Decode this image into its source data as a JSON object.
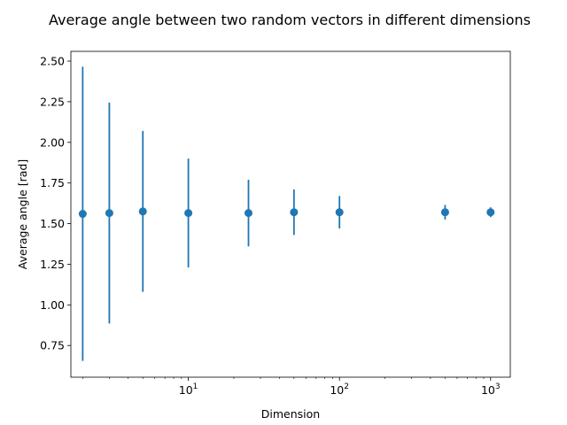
{
  "chart_data": {
    "type": "scatter",
    "title": "Average angle between two random vectors in different dimensions",
    "xlabel": "Dimension",
    "ylabel": "Average angle [rad]",
    "xscale": "log",
    "xlim": [
      1.67,
      1350
    ],
    "ylim": [
      0.555,
      2.56
    ],
    "grid": false,
    "color": "#1f77b4",
    "x": [
      2,
      3,
      5,
      10,
      25,
      50,
      100,
      500,
      1000
    ],
    "y": [
      1.56,
      1.565,
      1.575,
      1.565,
      1.565,
      1.57,
      1.57,
      1.57,
      1.57
    ],
    "yerr": [
      0.905,
      0.68,
      0.495,
      0.335,
      0.205,
      0.14,
      0.1,
      0.045,
      0.03
    ],
    "yticks": [
      "0.75",
      "1.00",
      "1.25",
      "1.50",
      "1.75",
      "2.00",
      "2.25",
      "2.50"
    ],
    "ytick_values": [
      0.75,
      1.0,
      1.25,
      1.5,
      1.75,
      2.0,
      2.25,
      2.5
    ],
    "xticks": [
      {
        "value": 10,
        "base": "10",
        "exp": "1"
      },
      {
        "value": 100,
        "base": "10",
        "exp": "2"
      },
      {
        "value": 1000,
        "base": "10",
        "exp": "3"
      }
    ]
  }
}
